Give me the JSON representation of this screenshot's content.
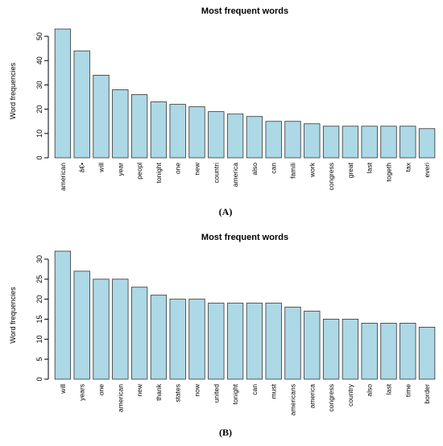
{
  "chart_data": [
    {
      "type": "bar",
      "title": "Most frequent words",
      "xlabel": "",
      "ylabel": "Word frequencies",
      "ylim": [
        0,
        55
      ],
      "yticks": [
        0,
        10,
        20,
        30,
        40,
        50
      ],
      "panel_label": "(A)",
      "bar_color": "#add8e6",
      "grid": false,
      "categories": [
        "american",
        "â€•",
        "will",
        "year",
        "peopl",
        "tonight",
        "one",
        "new",
        "countri",
        "america",
        "also",
        "can",
        "famili",
        "work",
        "congress",
        "great",
        "last",
        "togeth",
        "tax",
        "everi"
      ],
      "values": [
        53,
        44,
        34,
        28,
        26,
        23,
        22,
        21,
        19,
        18,
        17,
        15,
        15,
        14,
        13,
        13,
        13,
        13,
        13,
        12
      ]
    },
    {
      "type": "bar",
      "title": "Most frequent words",
      "xlabel": "",
      "ylabel": "Word frequencies",
      "ylim": [
        0,
        32
      ],
      "yticks": [
        0,
        5,
        10,
        15,
        20,
        25,
        30
      ],
      "panel_label": "(B)",
      "bar_color": "#add8e6",
      "grid": false,
      "categories": [
        "will",
        "years",
        "one",
        "american",
        "new",
        "thank",
        "states",
        "now",
        "united",
        "tonight",
        "can",
        "must",
        "americans",
        "america",
        "congress",
        "country",
        "also",
        "last",
        "time",
        "border"
      ],
      "values": [
        32,
        27,
        25,
        25,
        23,
        21,
        20,
        20,
        19,
        19,
        19,
        19,
        18,
        17,
        15,
        15,
        14,
        14,
        14,
        13
      ]
    }
  ]
}
